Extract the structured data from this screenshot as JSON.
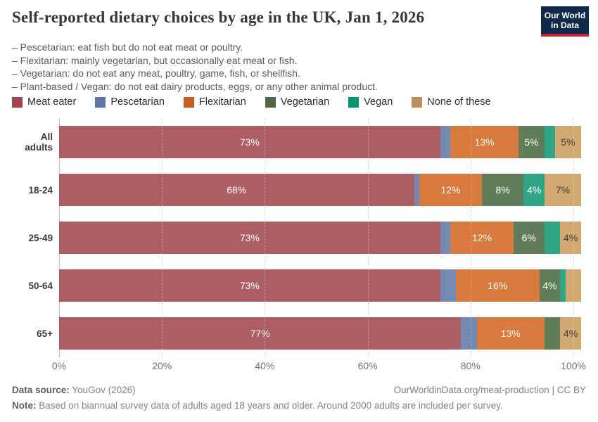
{
  "header": {
    "title": "Self-reported dietary choices by age in the UK, Jan 1, 2026",
    "subtitle_lines": [
      "– Pescetarian: eat fish but do not eat meat or poultry.",
      "– Flexitarian: mainly vegetarian, but occasionally eat meat or fish.",
      "– Vegetarian: do not eat any meat, poultry, game, fish, or shellfish.",
      "– Plant-based / Vegan: do not eat dairy products, eggs, or any other animal product."
    ],
    "logo": {
      "line1": "Our World",
      "line2": "in Data",
      "bg_color": "#102A4C",
      "accent_color": "#C1272D"
    }
  },
  "chart_data": {
    "type": "bar",
    "stacked": true,
    "orientation": "horizontal",
    "title": "Self-reported dietary choices by age in the UK, Jan 1, 2026",
    "categories": [
      "All adults",
      "18-24",
      "25-49",
      "50-64",
      "65+"
    ],
    "series": [
      {
        "name": "Meat eater",
        "color": "#A2444B",
        "bar_color": "#AC5E63",
        "label_dark": false,
        "values": [
          73,
          68,
          73,
          73,
          77
        ]
      },
      {
        "name": "Pescetarian",
        "color": "#5876A8",
        "bar_color": "#7289B3",
        "label_dark": false,
        "values": [
          2,
          1,
          2,
          3,
          3
        ]
      },
      {
        "name": "Flexitarian",
        "color": "#C85C21",
        "bar_color": "#D8793D",
        "label_dark": false,
        "values": [
          13,
          12,
          12,
          16,
          13
        ]
      },
      {
        "name": "Vegetarian",
        "color": "#4C6A42",
        "bar_color": "#5E7D58",
        "label_dark": false,
        "values": [
          5,
          8,
          6,
          4,
          3
        ]
      },
      {
        "name": "Vegan",
        "color": "#00966E",
        "bar_color": "#2FA585",
        "label_dark": false,
        "values": [
          2,
          4,
          3,
          1,
          0
        ]
      },
      {
        "name": "None of these",
        "color": "#BC8E5A",
        "bar_color": "#D2A871",
        "label_dark": true,
        "values": [
          5,
          7,
          4,
          3,
          4
        ]
      }
    ],
    "xticks": [
      0,
      20,
      40,
      60,
      80,
      100
    ],
    "xlabel_ticks": [
      "0%",
      "20%",
      "40%",
      "60%",
      "80%",
      "100%"
    ],
    "xlim": [
      0,
      100
    ],
    "scale_max": 101.5,
    "label_threshold": 4,
    "label_suffix": "%",
    "grid": true,
    "legend_position": "top"
  },
  "footer": {
    "source_label": "Data source:",
    "source_value": " YouGov (2026)",
    "attribution": "OurWorldinData.org/meat-production | CC BY",
    "note_label": "Note:",
    "note_value": " Based on biannual survey data of adults aged 18 years and older. Around 2000 adults are included per survey."
  }
}
